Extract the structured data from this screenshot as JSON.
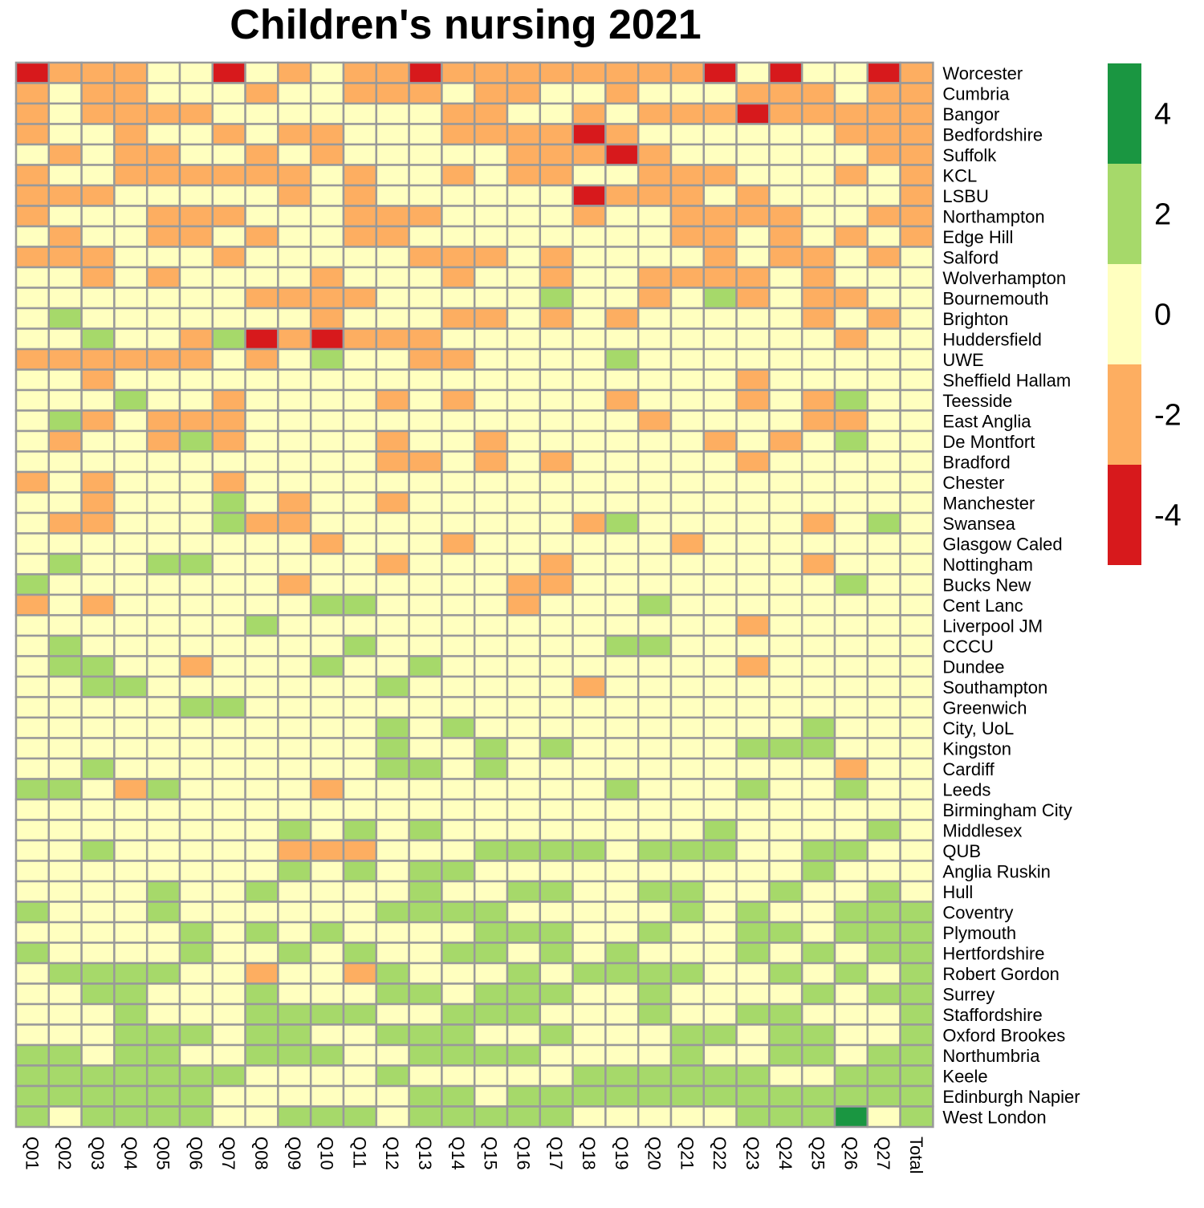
{
  "chart_data": {
    "type": "heatmap",
    "title": "Children's nursing 2021",
    "columns": [
      "Q01",
      "Q02",
      "Q03",
      "Q04",
      "Q05",
      "Q06",
      "Q07",
      "Q08",
      "Q09",
      "Q10",
      "Q11",
      "Q12",
      "Q13",
      "Q14",
      "Q15",
      "Q16",
      "Q17",
      "Q18",
      "Q19",
      "Q20",
      "Q21",
      "Q22",
      "Q23",
      "Q24",
      "Q25",
      "Q26",
      "Q27",
      "Total"
    ],
    "rows": [
      "Worcester",
      "Cumbria",
      "Bangor",
      "Bedfordshire",
      "Suffolk",
      "KCL",
      "LSBU",
      "Northampton",
      "Edge Hill",
      "Salford",
      "Wolverhampton",
      "Bournemouth",
      "Brighton",
      "Huddersfield",
      "UWE",
      "Sheffield Hallam",
      "Teesside",
      "East Anglia",
      "De Montfort",
      "Bradford",
      "Chester",
      "Manchester",
      "Swansea",
      "Glasgow Caled",
      "Nottingham",
      "Bucks New",
      "Cent Lanc",
      "Liverpool JM",
      "CCCU",
      "Dundee",
      "Southampton",
      "Greenwich",
      "City, UoL",
      "Kingston",
      "Cardiff",
      "Leeds",
      "Birmingham City",
      "Middlesex",
      "QUB",
      "Anglia Ruskin",
      "Hull",
      "Coventry",
      "Plymouth",
      "Hertfordshire",
      "Robert Gordon",
      "Surrey",
      "Staffordshire",
      "Oxford Brookes",
      "Northumbria",
      "Keele",
      "Edinburgh Napier",
      "West London"
    ],
    "values": [
      [
        -4,
        -2,
        -2,
        -2,
        0,
        0,
        -4,
        0,
        -2,
        0,
        -2,
        -2,
        -4,
        -2,
        -2,
        -2,
        -2,
        -2,
        -2,
        -2,
        -2,
        -4,
        0,
        -4,
        0,
        0,
        -4,
        -2
      ],
      [
        -2,
        0,
        -2,
        -2,
        0,
        0,
        0,
        -2,
        0,
        0,
        -2,
        -2,
        -2,
        0,
        -2,
        -2,
        0,
        0,
        -2,
        0,
        0,
        0,
        -2,
        -2,
        -2,
        0,
        -2,
        -2
      ],
      [
        -2,
        0,
        -2,
        -2,
        -2,
        -2,
        0,
        0,
        0,
        0,
        0,
        0,
        0,
        -2,
        -2,
        0,
        0,
        -2,
        0,
        -2,
        -2,
        -2,
        -4,
        -2,
        -2,
        -2,
        -2,
        -2
      ],
      [
        -2,
        0,
        0,
        -2,
        0,
        0,
        -2,
        0,
        -2,
        -2,
        0,
        0,
        0,
        -2,
        -2,
        -2,
        -2,
        -4,
        -2,
        0,
        0,
        0,
        0,
        0,
        0,
        -2,
        -2,
        -2
      ],
      [
        0,
        -2,
        0,
        -2,
        -2,
        0,
        0,
        -2,
        0,
        -2,
        0,
        0,
        0,
        0,
        0,
        -2,
        -2,
        -2,
        -4,
        -2,
        0,
        0,
        0,
        0,
        0,
        0,
        -2,
        -2
      ],
      [
        -2,
        0,
        0,
        -2,
        -2,
        -2,
        -2,
        -2,
        -2,
        0,
        -2,
        0,
        0,
        -2,
        0,
        -2,
        -2,
        0,
        0,
        -2,
        -2,
        -2,
        0,
        0,
        0,
        -2,
        0,
        -2
      ],
      [
        -2,
        -2,
        -2,
        0,
        0,
        0,
        0,
        0,
        -2,
        0,
        -2,
        0,
        0,
        0,
        0,
        0,
        0,
        -4,
        -2,
        -2,
        -2,
        0,
        -2,
        0,
        0,
        0,
        0,
        -2
      ],
      [
        -2,
        0,
        0,
        0,
        -2,
        -2,
        -2,
        0,
        0,
        0,
        -2,
        -2,
        -2,
        0,
        0,
        0,
        0,
        -2,
        0,
        0,
        -2,
        -2,
        -2,
        -2,
        0,
        0,
        -2,
        -2
      ],
      [
        0,
        -2,
        0,
        0,
        -2,
        -2,
        0,
        -2,
        0,
        0,
        -2,
        -2,
        0,
        0,
        0,
        0,
        0,
        0,
        0,
        0,
        -2,
        -2,
        0,
        -2,
        0,
        -2,
        0,
        -2
      ],
      [
        -2,
        -2,
        -2,
        0,
        0,
        0,
        -2,
        0,
        0,
        0,
        0,
        0,
        -2,
        -2,
        -2,
        0,
        -2,
        0,
        0,
        0,
        0,
        -2,
        0,
        -2,
        -2,
        0,
        -2,
        0
      ],
      [
        0,
        0,
        -2,
        0,
        -2,
        0,
        0,
        0,
        0,
        -2,
        0,
        0,
        0,
        -2,
        0,
        0,
        -2,
        0,
        0,
        -2,
        -2,
        -2,
        -2,
        0,
        -2,
        0,
        0,
        0
      ],
      [
        0,
        0,
        0,
        0,
        0,
        0,
        0,
        -2,
        -2,
        -2,
        -2,
        0,
        0,
        0,
        0,
        0,
        2,
        0,
        0,
        -2,
        0,
        2,
        -2,
        0,
        -2,
        -2,
        0,
        0
      ],
      [
        0,
        2,
        0,
        0,
        0,
        0,
        0,
        0,
        0,
        -2,
        0,
        0,
        0,
        -2,
        -2,
        0,
        -2,
        0,
        -2,
        0,
        0,
        0,
        0,
        0,
        -2,
        0,
        -2,
        0
      ],
      [
        0,
        0,
        2,
        0,
        0,
        -2,
        2,
        -4,
        -2,
        -4,
        -2,
        -2,
        -2,
        0,
        0,
        0,
        0,
        0,
        0,
        0,
        0,
        0,
        0,
        0,
        0,
        -2,
        0,
        0
      ],
      [
        -2,
        -2,
        -2,
        -2,
        -2,
        -2,
        0,
        -2,
        0,
        2,
        0,
        0,
        -2,
        -2,
        0,
        0,
        0,
        0,
        2,
        0,
        0,
        0,
        0,
        0,
        0,
        0,
        0,
        0
      ],
      [
        0,
        0,
        -2,
        0,
        0,
        0,
        0,
        0,
        0,
        0,
        0,
        0,
        0,
        0,
        0,
        0,
        0,
        0,
        0,
        0,
        0,
        0,
        -2,
        0,
        0,
        0,
        0,
        0
      ],
      [
        0,
        0,
        0,
        2,
        0,
        0,
        -2,
        0,
        0,
        0,
        0,
        -2,
        0,
        -2,
        0,
        0,
        0,
        0,
        -2,
        0,
        0,
        0,
        -2,
        0,
        -2,
        2,
        0,
        0
      ],
      [
        0,
        2,
        -2,
        0,
        -2,
        -2,
        -2,
        0,
        0,
        0,
        0,
        0,
        0,
        0,
        0,
        0,
        0,
        0,
        0,
        -2,
        0,
        0,
        0,
        0,
        -2,
        -2,
        0,
        0
      ],
      [
        0,
        -2,
        0,
        0,
        -2,
        2,
        -2,
        0,
        0,
        0,
        0,
        -2,
        0,
        0,
        -2,
        0,
        0,
        0,
        0,
        0,
        0,
        -2,
        0,
        -2,
        0,
        2,
        0,
        0
      ],
      [
        0,
        0,
        0,
        0,
        0,
        0,
        0,
        0,
        0,
        0,
        0,
        -2,
        -2,
        0,
        -2,
        0,
        -2,
        0,
        0,
        0,
        0,
        0,
        -2,
        0,
        0,
        0,
        0,
        0
      ],
      [
        -2,
        0,
        -2,
        0,
        0,
        0,
        -2,
        0,
        0,
        0,
        0,
        0,
        0,
        0,
        0,
        0,
        0,
        0,
        0,
        0,
        0,
        0,
        0,
        0,
        0,
        0,
        0,
        0
      ],
      [
        0,
        0,
        -2,
        0,
        0,
        0,
        2,
        0,
        -2,
        0,
        0,
        -2,
        0,
        0,
        0,
        0,
        0,
        0,
        0,
        0,
        0,
        0,
        0,
        0,
        0,
        0,
        0,
        0
      ],
      [
        0,
        -2,
        -2,
        0,
        0,
        0,
        2,
        -2,
        -2,
        0,
        0,
        0,
        0,
        0,
        0,
        0,
        0,
        -2,
        2,
        0,
        0,
        0,
        0,
        0,
        -2,
        0,
        2,
        0
      ],
      [
        0,
        0,
        0,
        0,
        0,
        0,
        0,
        0,
        0,
        -2,
        0,
        0,
        0,
        -2,
        0,
        0,
        0,
        0,
        0,
        0,
        -2,
        0,
        0,
        0,
        0,
        0,
        0,
        0
      ],
      [
        0,
        2,
        0,
        0,
        2,
        2,
        0,
        0,
        0,
        0,
        0,
        -2,
        0,
        0,
        0,
        0,
        -2,
        0,
        0,
        0,
        0,
        0,
        0,
        0,
        -2,
        0,
        0,
        0
      ],
      [
        2,
        0,
        0,
        0,
        0,
        0,
        0,
        0,
        -2,
        0,
        0,
        0,
        0,
        0,
        0,
        -2,
        -2,
        0,
        0,
        0,
        0,
        0,
        0,
        0,
        0,
        2,
        0,
        0
      ],
      [
        -2,
        0,
        -2,
        0,
        0,
        0,
        0,
        0,
        0,
        2,
        2,
        0,
        0,
        0,
        0,
        -2,
        0,
        0,
        0,
        2,
        0,
        0,
        0,
        0,
        0,
        0,
        0,
        0
      ],
      [
        0,
        0,
        0,
        0,
        0,
        0,
        0,
        2,
        0,
        0,
        0,
        0,
        0,
        0,
        0,
        0,
        0,
        0,
        0,
        0,
        0,
        0,
        -2,
        0,
        0,
        0,
        0,
        0
      ],
      [
        0,
        2,
        0,
        0,
        0,
        0,
        0,
        0,
        0,
        0,
        2,
        0,
        0,
        0,
        0,
        0,
        0,
        0,
        2,
        2,
        0,
        0,
        0,
        0,
        0,
        0,
        0,
        0
      ],
      [
        0,
        2,
        2,
        0,
        0,
        -2,
        0,
        0,
        0,
        2,
        0,
        0,
        2,
        0,
        0,
        0,
        0,
        0,
        0,
        0,
        0,
        0,
        -2,
        0,
        0,
        0,
        0,
        0
      ],
      [
        0,
        0,
        2,
        2,
        0,
        0,
        0,
        0,
        0,
        0,
        0,
        2,
        0,
        0,
        0,
        0,
        0,
        -2,
        0,
        0,
        0,
        0,
        0,
        0,
        0,
        0,
        0,
        0
      ],
      [
        0,
        0,
        0,
        0,
        0,
        2,
        2,
        0,
        0,
        0,
        0,
        0,
        0,
        0,
        0,
        0,
        0,
        0,
        0,
        0,
        0,
        0,
        0,
        0,
        0,
        0,
        0,
        0
      ],
      [
        0,
        0,
        0,
        0,
        0,
        0,
        0,
        0,
        0,
        0,
        0,
        2,
        0,
        2,
        0,
        0,
        0,
        0,
        0,
        0,
        0,
        0,
        0,
        0,
        2,
        0,
        0,
        0
      ],
      [
        0,
        0,
        0,
        0,
        0,
        0,
        0,
        0,
        0,
        0,
        0,
        2,
        0,
        0,
        2,
        0,
        2,
        0,
        0,
        0,
        0,
        0,
        2,
        2,
        2,
        0,
        0,
        0
      ],
      [
        0,
        0,
        2,
        0,
        0,
        0,
        0,
        0,
        0,
        0,
        0,
        2,
        2,
        0,
        2,
        0,
        0,
        0,
        0,
        0,
        0,
        0,
        0,
        0,
        0,
        -2,
        0,
        0
      ],
      [
        2,
        2,
        0,
        -2,
        2,
        0,
        0,
        0,
        0,
        -2,
        0,
        0,
        0,
        0,
        0,
        0,
        0,
        0,
        2,
        0,
        0,
        0,
        2,
        0,
        0,
        2,
        0,
        0
      ],
      [
        0,
        0,
        0,
        0,
        0,
        0,
        0,
        0,
        0,
        0,
        0,
        0,
        0,
        0,
        0,
        0,
        0,
        0,
        0,
        0,
        0,
        0,
        0,
        0,
        0,
        0,
        0,
        0
      ],
      [
        0,
        0,
        0,
        0,
        0,
        0,
        0,
        0,
        2,
        0,
        2,
        0,
        2,
        0,
        0,
        0,
        0,
        0,
        0,
        0,
        0,
        2,
        0,
        0,
        0,
        0,
        2,
        0
      ],
      [
        0,
        0,
        2,
        0,
        0,
        0,
        0,
        0,
        -2,
        -2,
        -2,
        0,
        0,
        0,
        2,
        2,
        2,
        2,
        0,
        2,
        2,
        2,
        0,
        0,
        2,
        2,
        0,
        0
      ],
      [
        0,
        0,
        0,
        0,
        0,
        0,
        0,
        0,
        2,
        0,
        2,
        0,
        2,
        2,
        0,
        0,
        0,
        0,
        0,
        0,
        0,
        0,
        0,
        0,
        2,
        0,
        0,
        0
      ],
      [
        0,
        0,
        0,
        0,
        2,
        0,
        0,
        2,
        0,
        0,
        0,
        0,
        2,
        0,
        0,
        2,
        2,
        0,
        0,
        2,
        2,
        0,
        0,
        2,
        0,
        0,
        2,
        0
      ],
      [
        2,
        0,
        0,
        0,
        2,
        0,
        0,
        0,
        0,
        0,
        0,
        2,
        2,
        2,
        2,
        0,
        0,
        0,
        0,
        0,
        2,
        0,
        2,
        0,
        0,
        2,
        2,
        2
      ],
      [
        0,
        0,
        0,
        0,
        0,
        2,
        0,
        2,
        0,
        2,
        0,
        0,
        0,
        0,
        2,
        2,
        2,
        0,
        0,
        2,
        0,
        0,
        2,
        2,
        0,
        2,
        2,
        2
      ],
      [
        2,
        0,
        0,
        0,
        0,
        2,
        0,
        0,
        2,
        0,
        2,
        0,
        0,
        2,
        2,
        0,
        2,
        0,
        2,
        0,
        0,
        0,
        2,
        0,
        2,
        0,
        2,
        2
      ],
      [
        0,
        2,
        2,
        2,
        2,
        0,
        0,
        -2,
        0,
        0,
        -2,
        2,
        0,
        0,
        0,
        2,
        0,
        2,
        2,
        2,
        2,
        0,
        0,
        2,
        0,
        2,
        0,
        2
      ],
      [
        0,
        0,
        2,
        2,
        0,
        0,
        0,
        2,
        0,
        0,
        0,
        2,
        2,
        0,
        2,
        2,
        2,
        0,
        0,
        2,
        0,
        0,
        0,
        0,
        2,
        0,
        2,
        2
      ],
      [
        0,
        0,
        0,
        2,
        0,
        0,
        0,
        2,
        2,
        2,
        2,
        0,
        0,
        2,
        2,
        2,
        0,
        0,
        0,
        2,
        0,
        0,
        2,
        2,
        0,
        0,
        0,
        2
      ],
      [
        0,
        0,
        0,
        2,
        2,
        2,
        0,
        2,
        2,
        0,
        0,
        2,
        2,
        2,
        0,
        0,
        2,
        0,
        0,
        0,
        2,
        2,
        0,
        2,
        2,
        0,
        0,
        2
      ],
      [
        2,
        2,
        0,
        2,
        2,
        0,
        0,
        2,
        2,
        2,
        0,
        0,
        2,
        2,
        2,
        2,
        0,
        0,
        0,
        0,
        2,
        0,
        0,
        2,
        2,
        0,
        2,
        2
      ],
      [
        2,
        2,
        2,
        2,
        2,
        2,
        2,
        0,
        0,
        0,
        0,
        2,
        0,
        0,
        0,
        0,
        0,
        2,
        2,
        2,
        2,
        2,
        2,
        0,
        0,
        2,
        2,
        2
      ],
      [
        2,
        2,
        2,
        2,
        2,
        2,
        0,
        0,
        0,
        0,
        0,
        0,
        2,
        2,
        0,
        2,
        2,
        2,
        2,
        2,
        2,
        2,
        2,
        2,
        2,
        2,
        2,
        2
      ],
      [
        2,
        0,
        2,
        2,
        2,
        2,
        0,
        0,
        2,
        2,
        2,
        0,
        2,
        2,
        2,
        2,
        2,
        0,
        0,
        0,
        0,
        0,
        2,
        2,
        2,
        4,
        0,
        2
      ]
    ],
    "scale_breaks": [
      -5,
      -3,
      -1,
      1,
      3,
      5
    ],
    "colors": [
      "#d7191c",
      "#fdae61",
      "#ffffbf",
      "#a6d96a",
      "#1a9641"
    ],
    "cell_border_color": "#999999",
    "legend": {
      "position": "right",
      "labels": [
        "4",
        "2",
        "0",
        "-2",
        "-4"
      ]
    },
    "xlabel": "",
    "ylabel": ""
  }
}
